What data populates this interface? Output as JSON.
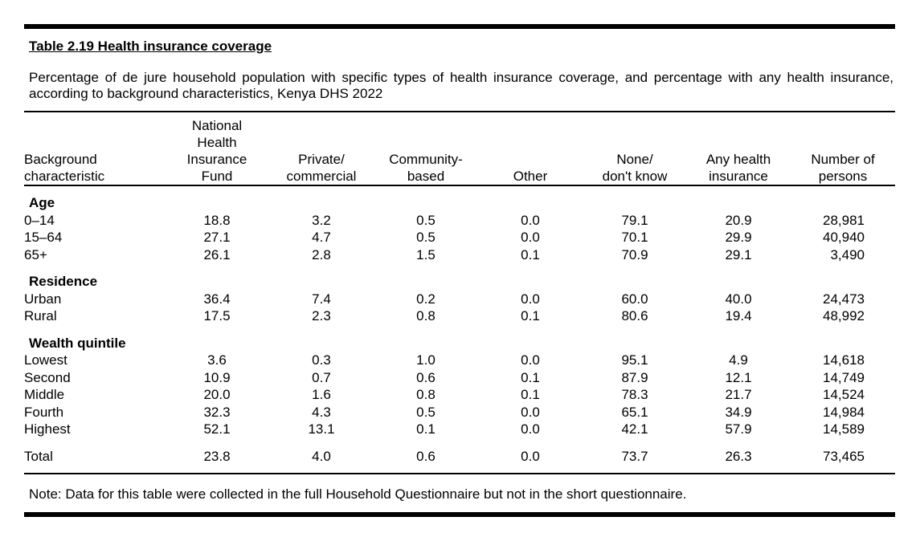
{
  "title": "Table 2.19  Health insurance coverage",
  "subtitle": "Percentage of de jure household population with specific types of health insurance coverage, and percentage with any health insurance, according to background characteristics, Kenya DHS 2022",
  "columns": {
    "background": [
      "Background",
      "characteristic"
    ],
    "nhif": [
      "National",
      "Health",
      "Insurance",
      "Fund"
    ],
    "private": [
      "Private/",
      "commercial"
    ],
    "community": [
      "Community-",
      "based"
    ],
    "other": [
      "Other"
    ],
    "none": [
      "None/",
      "don't know"
    ],
    "any": [
      "Any health",
      "insurance"
    ],
    "persons": [
      "Number of",
      "persons"
    ]
  },
  "groups": [
    {
      "label": "Age",
      "rows": [
        {
          "label": "0–14",
          "values": [
            "18.8",
            "3.2",
            "0.5",
            "0.0",
            "79.1",
            "20.9",
            "28,981"
          ]
        },
        {
          "label": "15–64",
          "values": [
            "27.1",
            "4.7",
            "0.5",
            "0.0",
            "70.1",
            "29.9",
            "40,940"
          ]
        },
        {
          "label": "65+",
          "values": [
            "26.1",
            "2.8",
            "1.5",
            "0.1",
            "70.9",
            "29.1",
            "3,490"
          ]
        }
      ]
    },
    {
      "label": "Residence",
      "rows": [
        {
          "label": "Urban",
          "values": [
            "36.4",
            "7.4",
            "0.2",
            "0.0",
            "60.0",
            "40.0",
            "24,473"
          ]
        },
        {
          "label": "Rural",
          "values": [
            "17.5",
            "2.3",
            "0.8",
            "0.1",
            "80.6",
            "19.4",
            "48,992"
          ]
        }
      ]
    },
    {
      "label": "Wealth quintile",
      "rows": [
        {
          "label": "Lowest",
          "values": [
            "3.6",
            "0.3",
            "1.0",
            "0.0",
            "95.1",
            "4.9",
            "14,618"
          ]
        },
        {
          "label": "Second",
          "values": [
            "10.9",
            "0.7",
            "0.6",
            "0.1",
            "87.9",
            "12.1",
            "14,749"
          ]
        },
        {
          "label": "Middle",
          "values": [
            "20.0",
            "1.6",
            "0.8",
            "0.1",
            "78.3",
            "21.7",
            "14,524"
          ]
        },
        {
          "label": "Fourth",
          "values": [
            "32.3",
            "4.3",
            "0.5",
            "0.0",
            "65.1",
            "34.9",
            "14,984"
          ]
        },
        {
          "label": "Highest",
          "values": [
            "52.1",
            "13.1",
            "0.1",
            "0.0",
            "42.1",
            "57.9",
            "14,589"
          ]
        }
      ]
    }
  ],
  "total": {
    "label": "Total",
    "values": [
      "23.8",
      "4.0",
      "0.6",
      "0.0",
      "73.7",
      "26.3",
      "73,465"
    ]
  },
  "note": "Note: Data for this table were collected in the full Household Questionnaire but not in the short questionnaire."
}
